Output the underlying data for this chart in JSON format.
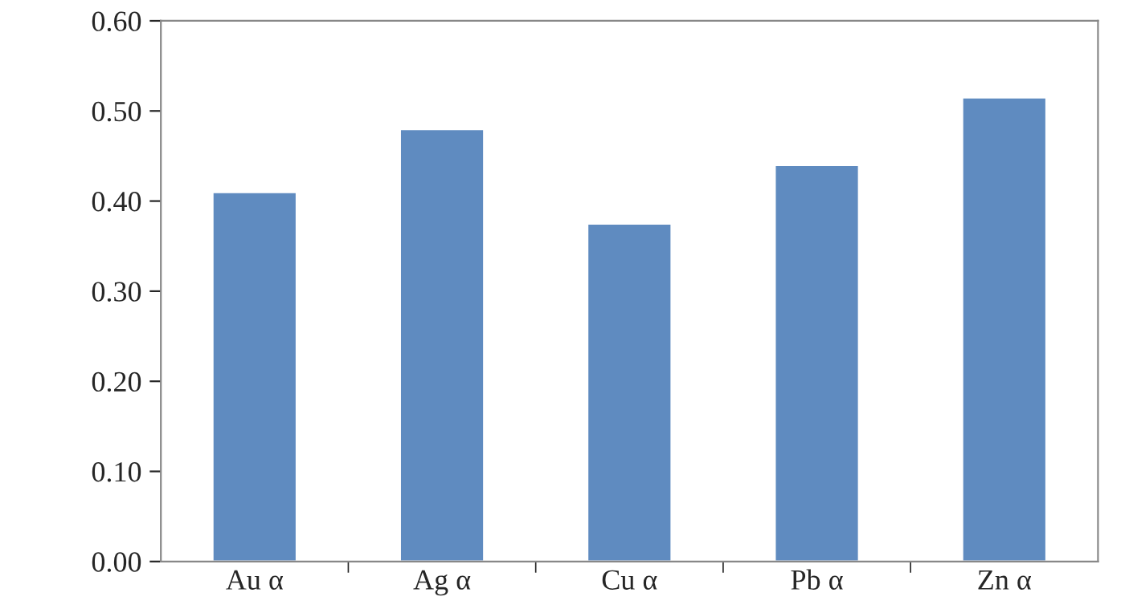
{
  "chart_data": {
    "type": "bar",
    "categories": [
      "Au α",
      "Ag α",
      "Cu α",
      "Pb α",
      "Zn α"
    ],
    "values": [
      0.41,
      0.48,
      0.375,
      0.44,
      0.515
    ],
    "color": "#5f8bc0",
    "ylim": [
      0,
      0.6
    ],
    "yticks": [
      {
        "value": 0,
        "label": "0.00"
      },
      {
        "value": 0.1,
        "label": "0.10"
      },
      {
        "value": 0.2,
        "label": "0.20"
      },
      {
        "value": 0.3,
        "label": "0.30"
      },
      {
        "value": 0.4,
        "label": "0.40"
      },
      {
        "value": 0.5,
        "label": "0.50"
      },
      {
        "value": 0.6,
        "label": "0.60"
      }
    ],
    "grid": false,
    "legend": false
  }
}
